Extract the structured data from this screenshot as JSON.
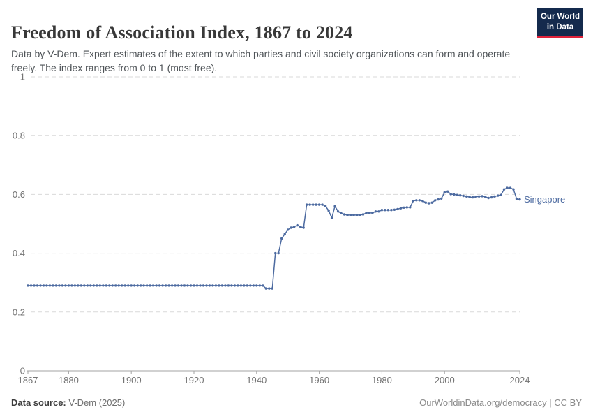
{
  "header": {
    "title": "Freedom of Association Index, 1867 to 2024",
    "subtitle": "Data by V-Dem. Expert estimates of the extent to which parties and civil society organizations can form and operate freely. The index ranges from 0 to 1 (most free).",
    "logo": {
      "line1": "Our World",
      "line2": "in Data",
      "bg_color": "#142a4d",
      "accent_color": "#e0223a"
    }
  },
  "footer": {
    "source_label": "Data source:",
    "source_value": " V-Dem (2025)",
    "attribution": "OurWorldinData.org/democracy | CC BY"
  },
  "chart_data": {
    "type": "line",
    "title": "Freedom of Association Index, 1867 to 2024",
    "xlabel": "",
    "ylabel": "",
    "xlim": [
      1867,
      2024
    ],
    "ylim": [
      0,
      1
    ],
    "x_ticks": [
      1867,
      1880,
      1900,
      1920,
      1940,
      1960,
      1980,
      2000,
      2024
    ],
    "y_ticks": [
      0,
      0.2,
      0.4,
      0.6,
      0.8,
      1
    ],
    "grid": "horizontal-dashed",
    "legend_position": "end-of-line-label",
    "line_color": "#4c6aa0",
    "grid_color": "#d9d9d9",
    "axis_color": "#a3a3a3",
    "tick_label_color": "#737373",
    "end_label": "Singapore",
    "series": [
      {
        "name": "Singapore",
        "color": "#4c6aa0",
        "start_year": 1867,
        "values": [
          0.29,
          0.29,
          0.29,
          0.29,
          0.29,
          0.29,
          0.29,
          0.29,
          0.29,
          0.29,
          0.29,
          0.29,
          0.29,
          0.29,
          0.29,
          0.29,
          0.29,
          0.29,
          0.29,
          0.29,
          0.29,
          0.29,
          0.29,
          0.29,
          0.29,
          0.29,
          0.29,
          0.29,
          0.29,
          0.29,
          0.29,
          0.29,
          0.29,
          0.29,
          0.29,
          0.29,
          0.29,
          0.29,
          0.29,
          0.29,
          0.29,
          0.29,
          0.29,
          0.29,
          0.29,
          0.29,
          0.29,
          0.29,
          0.29,
          0.29,
          0.29,
          0.29,
          0.29,
          0.29,
          0.29,
          0.29,
          0.29,
          0.29,
          0.29,
          0.29,
          0.29,
          0.29,
          0.29,
          0.29,
          0.29,
          0.29,
          0.29,
          0.29,
          0.29,
          0.29,
          0.29,
          0.29,
          0.29,
          0.29,
          0.29,
          0.29,
          0.28,
          0.28,
          0.28,
          0.4,
          0.4,
          0.45,
          0.465,
          0.48,
          0.487,
          0.49,
          0.495,
          0.49,
          0.487,
          0.565,
          0.565,
          0.565,
          0.565,
          0.565,
          0.565,
          0.56,
          0.545,
          0.52,
          0.56,
          0.542,
          0.536,
          0.532,
          0.53,
          0.53,
          0.53,
          0.53,
          0.53,
          0.532,
          0.537,
          0.537,
          0.537,
          0.542,
          0.542,
          0.547,
          0.547,
          0.547,
          0.547,
          0.548,
          0.55,
          0.553,
          0.555,
          0.556,
          0.556,
          0.578,
          0.58,
          0.58,
          0.578,
          0.572,
          0.57,
          0.572,
          0.58,
          0.583,
          0.586,
          0.607,
          0.61,
          0.601,
          0.6,
          0.598,
          0.597,
          0.595,
          0.593,
          0.591,
          0.59,
          0.592,
          0.593,
          0.594,
          0.592,
          0.588,
          0.59,
          0.593,
          0.596,
          0.598,
          0.617,
          0.622,
          0.622,
          0.617,
          0.585,
          0.583
        ]
      }
    ]
  }
}
